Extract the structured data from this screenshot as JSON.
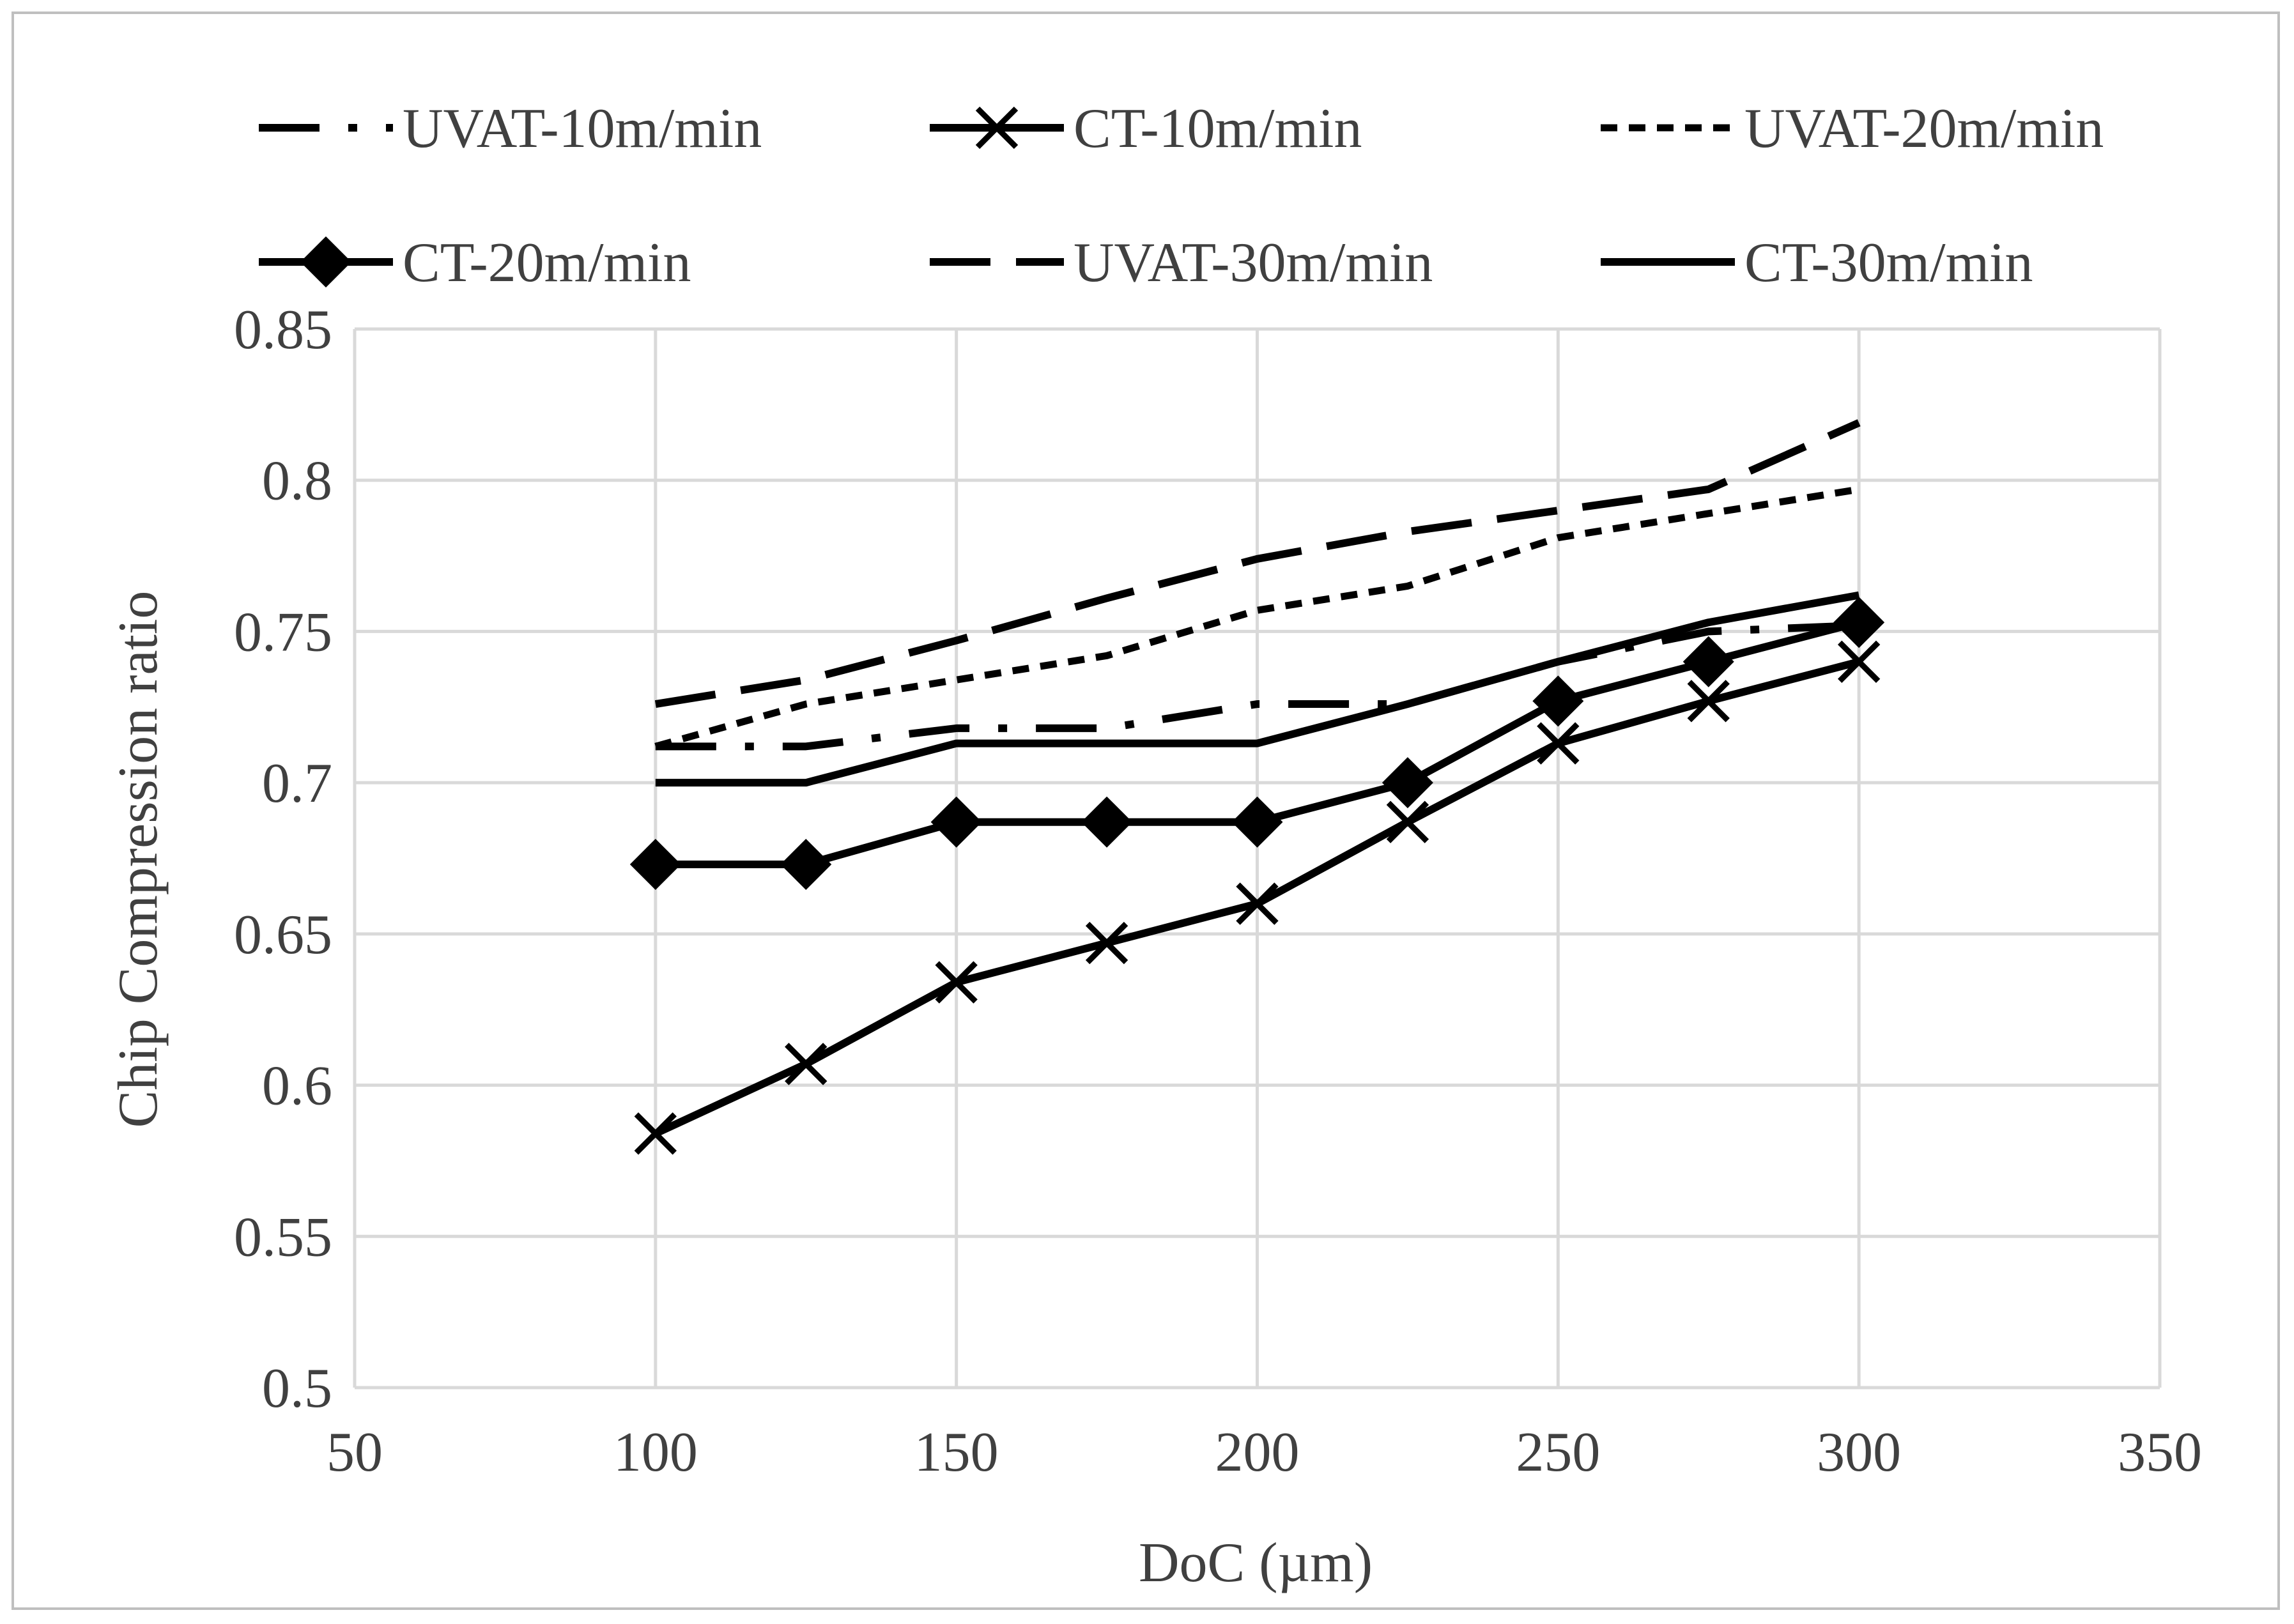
{
  "chart_data": {
    "type": "line",
    "xlabel": "DoC (µm)",
    "ylabel": "Chip Compression ratio",
    "xlim": [
      50,
      350
    ],
    "ylim": [
      0.5,
      0.85
    ],
    "xticks": [
      "50",
      "100",
      "150",
      "200",
      "250",
      "300",
      "350"
    ],
    "yticks": [
      "0.5",
      "0.55",
      "0.6",
      "0.65",
      "0.7",
      "0.75",
      "0.8",
      "0.85"
    ],
    "x": [
      100,
      125,
      150,
      175,
      200,
      225,
      250,
      275,
      300
    ],
    "grid": true,
    "legend_position": "top",
    "series": [
      {
        "name": "UVAT-10m/min",
        "style": "dash-dot",
        "marker": "none",
        "values": [
          0.712,
          0.712,
          0.718,
          0.718,
          0.726,
          0.726,
          0.74,
          0.75,
          0.752
        ]
      },
      {
        "name": "CT-10m/min",
        "style": "solid",
        "marker": "x",
        "values": [
          0.584,
          0.607,
          0.634,
          0.647,
          0.66,
          0.687,
          0.713,
          0.727,
          0.74
        ]
      },
      {
        "name": "UVAT-20m/min",
        "style": "short-dash",
        "marker": "none",
        "values": [
          0.712,
          0.726,
          0.734,
          0.742,
          0.757,
          0.765,
          0.781,
          0.789,
          0.797
        ]
      },
      {
        "name": "CT-20m/min",
        "style": "solid",
        "marker": "diamond",
        "values": [
          0.673,
          0.673,
          0.687,
          0.687,
          0.687,
          0.7,
          0.727,
          0.74,
          0.753
        ]
      },
      {
        "name": "UVAT-30m/min",
        "style": "long-dash",
        "marker": "none",
        "values": [
          0.726,
          0.734,
          0.747,
          0.761,
          0.774,
          0.783,
          0.79,
          0.797,
          0.819
        ]
      },
      {
        "name": "CT-30m/min",
        "style": "solid",
        "marker": "none",
        "values": [
          0.7,
          0.7,
          0.713,
          0.713,
          0.713,
          0.726,
          0.74,
          0.753,
          0.762
        ]
      }
    ],
    "colors": {
      "line": "#000000",
      "grid": "#d9d9d9",
      "text": "#404040",
      "frame": "#bfbfbf"
    }
  }
}
